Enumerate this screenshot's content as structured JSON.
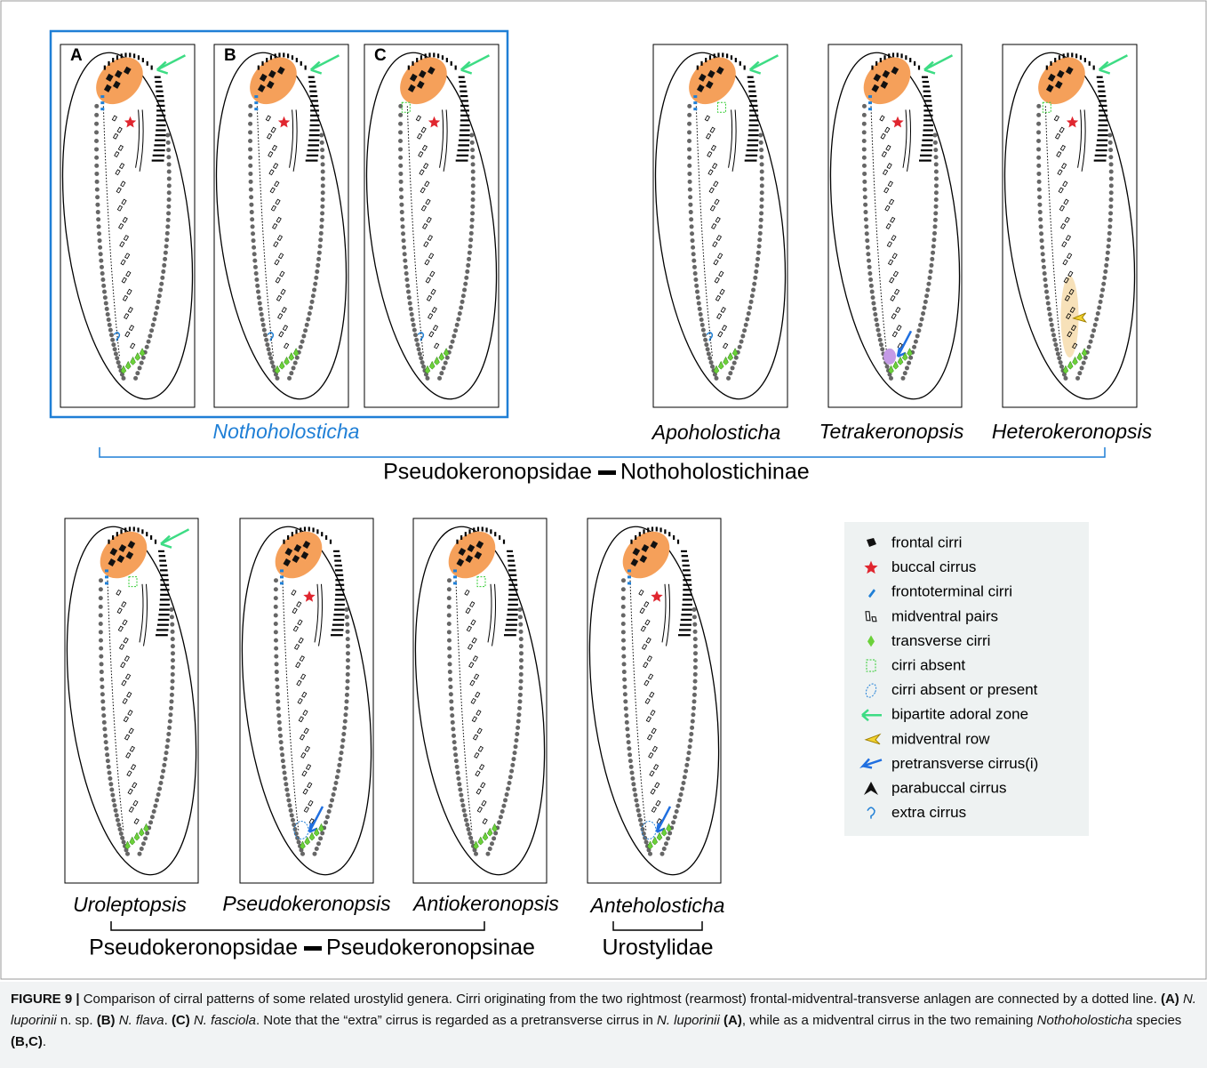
{
  "panels": {
    "letters": [
      "A",
      "B",
      "C"
    ]
  },
  "genera": {
    "top": [
      "Nothoholosticha",
      "Apoholosticha",
      "Tetrakeronopsis",
      "Heterokeronopsis"
    ],
    "bottom": [
      "Uroleptopsis",
      "Pseudokeronopsis",
      "Antiokeronopsis",
      "Anteholosticha"
    ]
  },
  "families": {
    "top": {
      "family": "Pseudokeronopsidae",
      "subfamily": "Nothoholostichinae"
    },
    "bottom": {
      "family": "Pseudokeronopsidae",
      "subfamily": "Pseudokeronopsinae"
    },
    "other": "Urostylidae"
  },
  "legend": [
    "frontal cirri",
    "buccal cirrus",
    "frontoterminal cirri",
    "midventral pairs",
    "transverse cirri",
    "cirri absent",
    "cirri absent or present",
    "bipartite adoral zone",
    "midventral row",
    "pretransverse cirrus(i)",
    "parabuccal cirrus",
    "extra cirrus"
  ],
  "caption": {
    "parts": [
      "FIGURE 9 |",
      "Comparison of cirral patterns of some related urostylid genera. Cirri originating from the two rightmost (rearmost) frontal-midventral-transverse anlagen are connected by a dotted line.",
      "(A)",
      "N. luporinii",
      "n. sp.",
      "(B)",
      "N. flava",
      ".",
      "(C)",
      "N. fasciola",
      ". Note that the “extra” cirrus is regarded as a pretransverse cirrus in",
      "N. luporinii",
      "(A)",
      ", while as a midventral cirrus in the two remaining",
      "Nothoholosticha",
      "species",
      "(B,C)",
      "."
    ]
  }
}
